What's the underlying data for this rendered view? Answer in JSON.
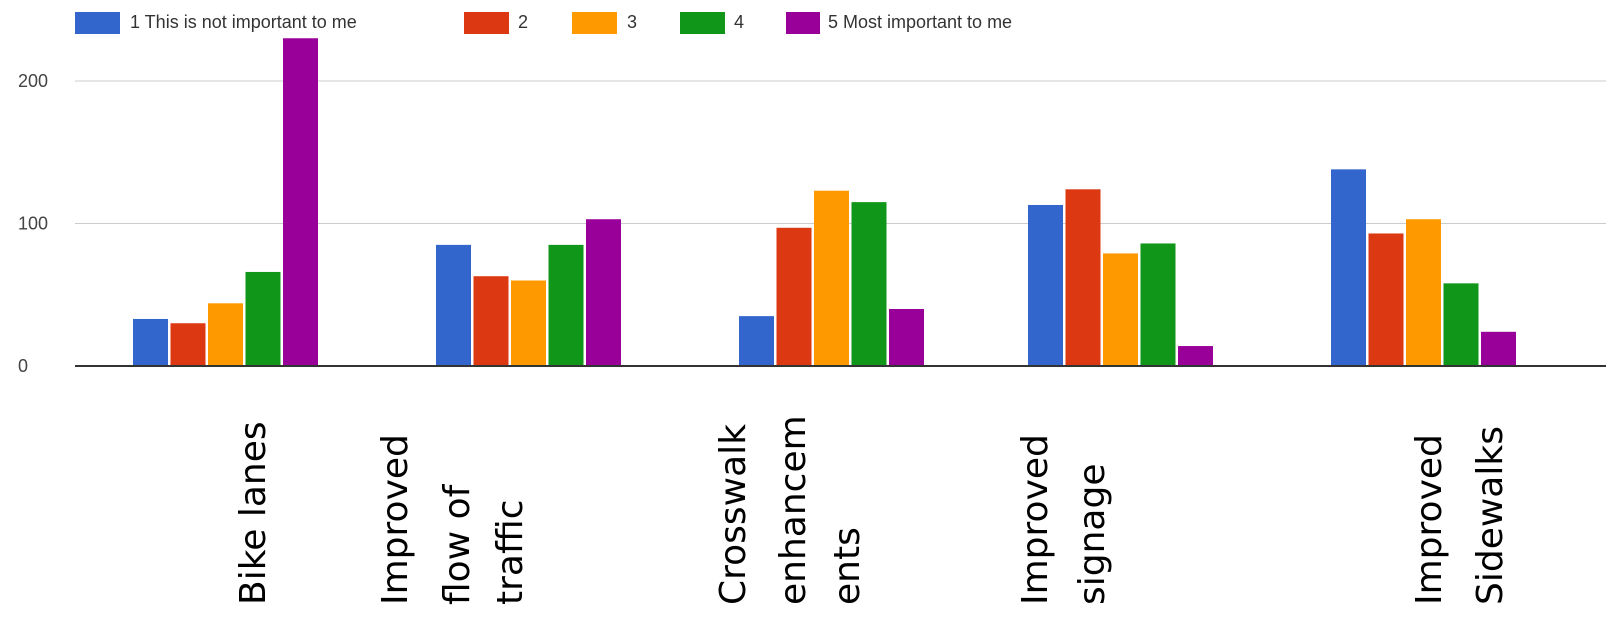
{
  "chart_data": {
    "type": "bar",
    "categories": [
      [
        "Bike lanes"
      ],
      [
        "Improved",
        "flow of",
        "traffic"
      ],
      [
        "Crosswalk",
        "enhancem",
        "ents"
      ],
      [
        "Improved",
        "signage"
      ],
      [
        "Improved",
        "Sidewalks"
      ]
    ],
    "series": [
      {
        "name": "1 This is not important to me",
        "color": "#3366cc",
        "values": [
          33,
          85,
          35,
          113,
          138
        ]
      },
      {
        "name": "2",
        "color": "#dc3912",
        "values": [
          30,
          63,
          97,
          124,
          93
        ]
      },
      {
        "name": "3",
        "color": "#ff9900",
        "values": [
          44,
          60,
          123,
          79,
          103
        ]
      },
      {
        "name": "4",
        "color": "#109618",
        "values": [
          66,
          85,
          115,
          86,
          58
        ]
      },
      {
        "name": "5 Most important to me",
        "color": "#990099",
        "values": [
          230,
          103,
          40,
          14,
          24
        ]
      }
    ],
    "yticks": [
      0,
      100,
      200
    ],
    "ylim": [
      0,
      230
    ],
    "grid": true,
    "legend": "top",
    "title": "",
    "xlabel": "",
    "ylabel": ""
  }
}
